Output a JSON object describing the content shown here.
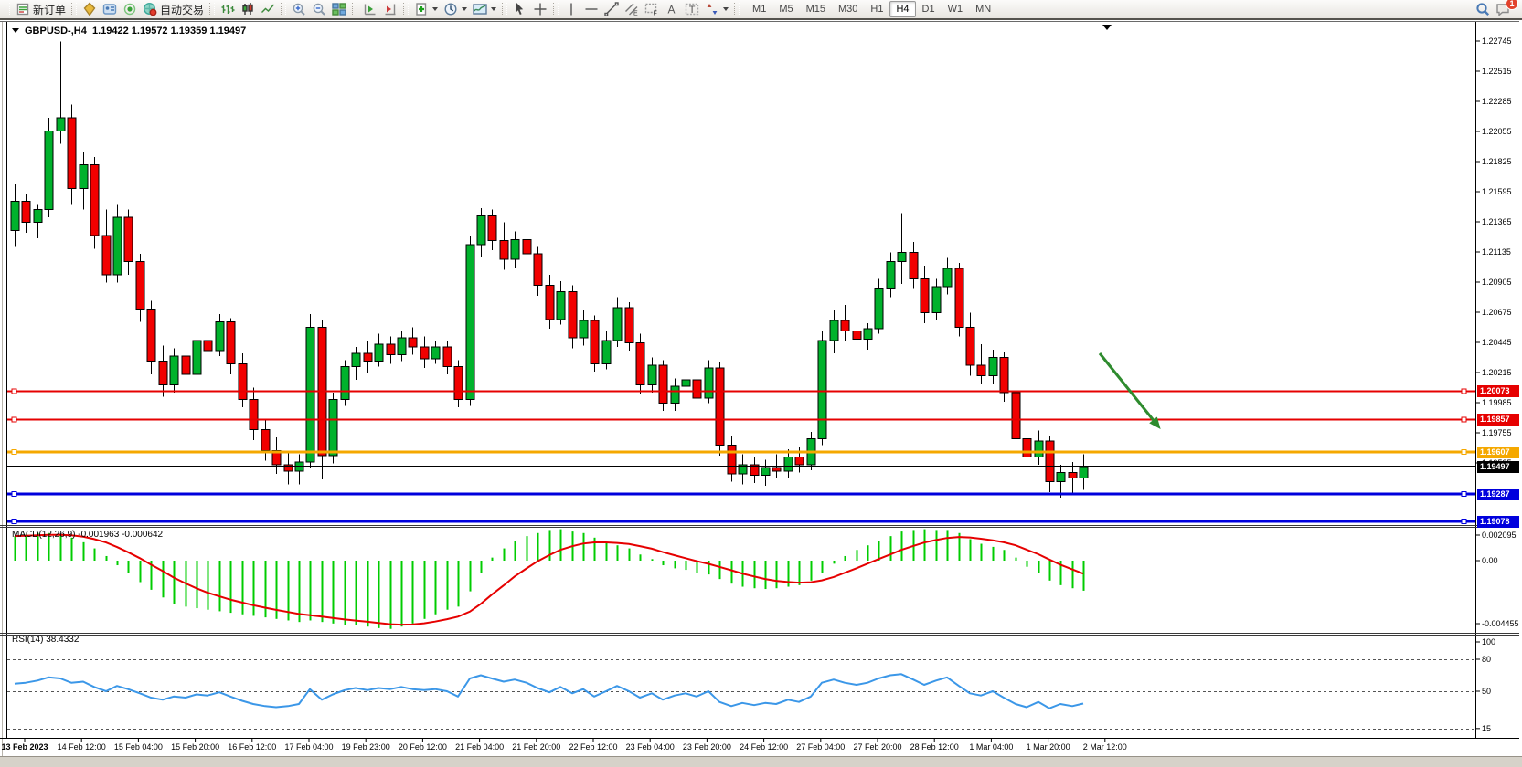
{
  "toolbar": {
    "new_order_label": "新订单",
    "auto_trading_label": "自动交易",
    "timeframes": [
      "M1",
      "M5",
      "M15",
      "M30",
      "H1",
      "H4",
      "D1",
      "W1",
      "MN"
    ],
    "active_timeframe": "H4",
    "notification_count": "1"
  },
  "chart": {
    "symbol": "GBPUSD-,H4",
    "ohlc_display": "1.19422 1.19572 1.19359 1.19497"
  },
  "chart_data": [
    {
      "type": "candlestick",
      "title": "GBPUSD-,H4",
      "open": 1.19422,
      "high": 1.19572,
      "low": 1.19359,
      "close": 1.19497,
      "y_range": [
        1.19,
        1.2286
      ],
      "y_ticks": [
        "1.22745",
        "1.22515",
        "1.22285",
        "1.22055",
        "1.21825",
        "1.21595",
        "1.21365",
        "1.21135",
        "1.20905",
        "1.20675",
        "1.20445",
        "1.20215",
        "1.19985",
        "1.19755",
        "1.19525"
      ],
      "x_labels": [
        "13 Feb 2023",
        "14 Feb 12:00",
        "15 Feb 04:00",
        "15 Feb 20:00",
        "16 Feb 12:00",
        "17 Feb 04:00",
        "19 Feb 23:00",
        "20 Feb 12:00",
        "21 Feb 04:00",
        "21 Feb 20:00",
        "22 Feb 12:00",
        "23 Feb 04:00",
        "23 Feb 20:00",
        "24 Feb 12:00",
        "27 Feb 04:00",
        "27 Feb 20:00",
        "28 Feb 12:00",
        "1 Mar 04:00",
        "1 Mar 20:00",
        "2 Mar 12:00"
      ],
      "up_color": "#00b22c",
      "down_color": "#f20000",
      "candles": [
        [
          1.213,
          1.2165,
          1.2118,
          1.2152
        ],
        [
          1.2152,
          1.2158,
          1.2128,
          1.2136
        ],
        [
          1.2136,
          1.215,
          1.2124,
          1.2146
        ],
        [
          1.2146,
          1.2216,
          1.214,
          1.2206
        ],
        [
          1.2206,
          1.2274,
          1.2196,
          1.2216
        ],
        [
          1.2216,
          1.2226,
          1.215,
          1.2162
        ],
        [
          1.2162,
          1.219,
          1.2146,
          1.218
        ],
        [
          1.218,
          1.2186,
          1.2116,
          1.2126
        ],
        [
          1.2126,
          1.2146,
          1.209,
          1.2096
        ],
        [
          1.2096,
          1.215,
          1.209,
          1.214
        ],
        [
          1.214,
          1.2146,
          1.2096,
          1.2106
        ],
        [
          1.2106,
          1.2112,
          1.206,
          1.207
        ],
        [
          1.207,
          1.2076,
          1.202,
          1.203
        ],
        [
          1.203,
          1.2042,
          1.2003,
          1.2012
        ],
        [
          1.2012,
          1.204,
          1.2006,
          1.2034
        ],
        [
          1.2034,
          1.2046,
          1.2014,
          1.202
        ],
        [
          1.202,
          1.205,
          1.2016,
          1.2046
        ],
        [
          1.2046,
          1.2056,
          1.203,
          1.2038
        ],
        [
          1.2038,
          1.2066,
          1.2034,
          1.206
        ],
        [
          1.206,
          1.2063,
          1.202,
          1.2028
        ],
        [
          1.2028,
          1.2036,
          1.1995,
          1.2001
        ],
        [
          1.2001,
          1.201,
          1.197,
          1.1978
        ],
        [
          1.1978,
          1.1986,
          1.1954,
          1.1962
        ],
        [
          1.1962,
          1.1972,
          1.1944,
          1.1951
        ],
        [
          1.1951,
          1.1961,
          1.1936,
          1.1946
        ],
        [
          1.1946,
          1.1959,
          1.1936,
          1.1953
        ],
        [
          1.1953,
          1.2066,
          1.1949,
          1.2056
        ],
        [
          1.2056,
          1.2061,
          1.194,
          1.1958
        ],
        [
          1.1958,
          1.2006,
          1.1952,
          1.2001
        ],
        [
          1.2001,
          1.2031,
          1.1996,
          1.2026
        ],
        [
          1.2026,
          1.2041,
          1.2016,
          1.2036
        ],
        [
          1.2036,
          1.2046,
          1.2021,
          1.203
        ],
        [
          1.203,
          1.2051,
          1.2026,
          1.2043
        ],
        [
          1.2043,
          1.2049,
          1.2028,
          1.2035
        ],
        [
          1.2035,
          1.2053,
          1.203,
          1.2048
        ],
        [
          1.2048,
          1.2056,
          1.2035,
          1.2041
        ],
        [
          1.2041,
          1.2049,
          1.2025,
          1.2032
        ],
        [
          1.2032,
          1.2046,
          1.2028,
          1.2041
        ],
        [
          1.2041,
          1.2045,
          1.202,
          1.2026
        ],
        [
          1.2026,
          1.2031,
          1.1995,
          1.2001
        ],
        [
          1.2001,
          1.2126,
          1.1996,
          1.2119
        ],
        [
          1.2119,
          1.2147,
          1.211,
          1.2141
        ],
        [
          1.2141,
          1.2146,
          1.2115,
          1.2122
        ],
        [
          1.2122,
          1.2136,
          1.21,
          1.2108
        ],
        [
          1.2108,
          1.2129,
          1.2101,
          1.2123
        ],
        [
          1.2123,
          1.2133,
          1.2108,
          1.2112
        ],
        [
          1.2112,
          1.2118,
          1.208,
          1.2088
        ],
        [
          1.2088,
          1.2096,
          1.2055,
          1.2062
        ],
        [
          1.2062,
          1.2091,
          1.2058,
          1.2083
        ],
        [
          1.2083,
          1.2088,
          1.204,
          1.2048
        ],
        [
          1.2048,
          1.2069,
          1.2042,
          1.2061
        ],
        [
          1.2061,
          1.2065,
          1.2022,
          1.2028
        ],
        [
          1.2028,
          1.2053,
          1.2024,
          1.2046
        ],
        [
          1.2046,
          1.2079,
          1.2041,
          1.2071
        ],
        [
          1.2071,
          1.2075,
          1.2038,
          1.2044
        ],
        [
          1.2044,
          1.2051,
          1.2005,
          1.2012
        ],
        [
          1.2012,
          1.2033,
          1.2006,
          1.2027
        ],
        [
          1.2027,
          1.2031,
          1.1992,
          1.1998
        ],
        [
          1.1998,
          1.2017,
          1.1992,
          1.2011
        ],
        [
          1.2011,
          1.2023,
          1.1998,
          1.2016
        ],
        [
          1.2016,
          1.2021,
          1.1996,
          1.2002
        ],
        [
          1.2002,
          1.2031,
          1.1998,
          1.2025
        ],
        [
          1.2025,
          1.2029,
          1.1958,
          1.1966
        ],
        [
          1.1966,
          1.1973,
          1.1938,
          1.1944
        ],
        [
          1.1944,
          1.1959,
          1.1936,
          1.1951
        ],
        [
          1.1951,
          1.1957,
          1.1937,
          1.1943
        ],
        [
          1.1943,
          1.1955,
          1.1935,
          1.1949
        ],
        [
          1.1949,
          1.1959,
          1.1941,
          1.1946
        ],
        [
          1.1946,
          1.1963,
          1.1941,
          1.1957
        ],
        [
          1.1957,
          1.1965,
          1.1945,
          1.1951
        ],
        [
          1.1951,
          1.1976,
          1.1947,
          1.1971
        ],
        [
          1.1971,
          1.2053,
          1.1966,
          1.2046
        ],
        [
          1.2046,
          1.2069,
          1.2036,
          1.2061
        ],
        [
          1.2061,
          1.2073,
          1.2046,
          1.2053
        ],
        [
          1.2053,
          1.2065,
          1.2041,
          1.2047
        ],
        [
          1.2047,
          1.2059,
          1.2039,
          1.2055
        ],
        [
          1.2055,
          1.2093,
          1.2051,
          1.2086
        ],
        [
          1.2086,
          1.2113,
          1.2079,
          1.2106
        ],
        [
          1.2106,
          1.2143,
          1.2089,
          1.2113
        ],
        [
          1.2113,
          1.2121,
          1.2086,
          1.2093
        ],
        [
          1.2093,
          1.2103,
          1.2059,
          1.2067
        ],
        [
          1.2067,
          1.2093,
          1.2061,
          1.2087
        ],
        [
          1.2087,
          1.2109,
          1.2081,
          1.2101
        ],
        [
          1.2101,
          1.2105,
          1.2049,
          1.2056
        ],
        [
          1.2056,
          1.2067,
          1.2019,
          1.2027
        ],
        [
          1.2027,
          1.2043,
          1.2013,
          1.2019
        ],
        [
          1.2019,
          1.2039,
          1.2013,
          1.2033
        ],
        [
          1.2033,
          1.2037,
          1.1999,
          1.2006
        ],
        [
          1.2006,
          1.2015,
          1.1963,
          1.1971
        ],
        [
          1.1971,
          1.1987,
          1.1949,
          1.1957
        ],
        [
          1.1957,
          1.1977,
          1.1951,
          1.1969
        ],
        [
          1.1969,
          1.1973,
          1.193,
          1.1938
        ],
        [
          1.1938,
          1.1951,
          1.1926,
          1.1945
        ],
        [
          1.1945,
          1.1953,
          1.1929,
          1.1941
        ],
        [
          1.1941,
          1.1959,
          1.1932,
          1.19497
        ]
      ],
      "horizontal_lines": [
        {
          "price": 1.20073,
          "color": "#e60000",
          "width": 2,
          "label": "1.20073"
        },
        {
          "price": 1.19857,
          "color": "#e60000",
          "width": 2,
          "label": "1.19857"
        },
        {
          "price": 1.19607,
          "color": "#f5a800",
          "width": 3,
          "label": "1.19607"
        },
        {
          "price": 1.195,
          "color": "#000000",
          "width": 1,
          "label": null
        },
        {
          "price": 1.19287,
          "color": "#0000dd",
          "width": 3,
          "label": "1.19287"
        },
        {
          "price": 1.19078,
          "color": "#0000dd",
          "width": 3,
          "label": "1.19078"
        }
      ],
      "price_tag": {
        "value": "1.19497",
        "color": "#000000"
      },
      "arrow_annotation": {
        "color": "#2e8b2e",
        "from": [
          1203,
          387
        ],
        "to": [
          1264,
          463
        ]
      }
    },
    {
      "type": "bar",
      "title": "MACD(12,26,9)",
      "values_display": "-0.001963 -0.000642",
      "y_ticks": [
        "0.002095",
        "0.00",
        "-0.004455"
      ],
      "histogram_color": "#00cc00",
      "signal_color": "#e60000",
      "histogram": [
        0.0016,
        0.0017,
        0.0018,
        0.0018,
        0.0017,
        0.0015,
        0.0012,
        0.0008,
        0.0003,
        -0.0003,
        -0.0008,
        -0.0014,
        -0.0019,
        -0.0024,
        -0.0028,
        -0.003,
        -0.0031,
        -0.0032,
        -0.0033,
        -0.0034,
        -0.0035,
        -0.0036,
        -0.0037,
        -0.0038,
        -0.0039,
        -0.004,
        -0.0039,
        -0.004,
        -0.0041,
        -0.0042,
        -0.0042,
        -0.0043,
        -0.0044,
        -0.00445,
        -0.0043,
        -0.0041,
        -0.0038,
        -0.0035,
        -0.0032,
        -0.003,
        -0.002,
        -0.0008,
        0.0002,
        0.0008,
        0.0013,
        0.0016,
        0.0018,
        0.002,
        0.00205,
        0.0019,
        0.0018,
        0.0015,
        0.0012,
        0.001,
        0.0008,
        0.0004,
        0.0001,
        -0.0003,
        -0.0005,
        -0.0006,
        -0.0008,
        -0.0009,
        -0.0012,
        -0.0015,
        -0.0017,
        -0.0018,
        -0.00185,
        -0.0018,
        -0.0017,
        -0.0016,
        -0.0013,
        -0.0008,
        -0.0002,
        0.0003,
        0.0007,
        0.001,
        0.0013,
        0.0016,
        0.0019,
        0.002,
        0.00205,
        0.002,
        0.002,
        0.0018,
        0.0014,
        0.0011,
        0.0009,
        0.0007,
        0.0002,
        -0.0004,
        -0.0008,
        -0.0013,
        -0.0016,
        -0.0018,
        -0.00196
      ]
    },
    {
      "type": "line",
      "title": "RSI(14)",
      "value_display": "38.4332",
      "levels": [
        100,
        80,
        50,
        15
      ],
      "color": "#3b97e8",
      "values": [
        57,
        58,
        60,
        63,
        62,
        58,
        59,
        54,
        50,
        55,
        52,
        48,
        44,
        42,
        45,
        44,
        47,
        46,
        49,
        45,
        41,
        38,
        36,
        35,
        36,
        38,
        52,
        42,
        47,
        51,
        53,
        51,
        53,
        52,
        54,
        52,
        51,
        52,
        50,
        45,
        62,
        65,
        62,
        59,
        61,
        58,
        53,
        49,
        54,
        48,
        52,
        45,
        50,
        55,
        50,
        44,
        48,
        42,
        46,
        48,
        45,
        50,
        40,
        36,
        39,
        37,
        39,
        38,
        42,
        40,
        45,
        58,
        61,
        58,
        56,
        58,
        62,
        65,
        66,
        61,
        56,
        60,
        63,
        55,
        48,
        46,
        50,
        44,
        38,
        35,
        40,
        34,
        38,
        36,
        38.4
      ]
    }
  ]
}
